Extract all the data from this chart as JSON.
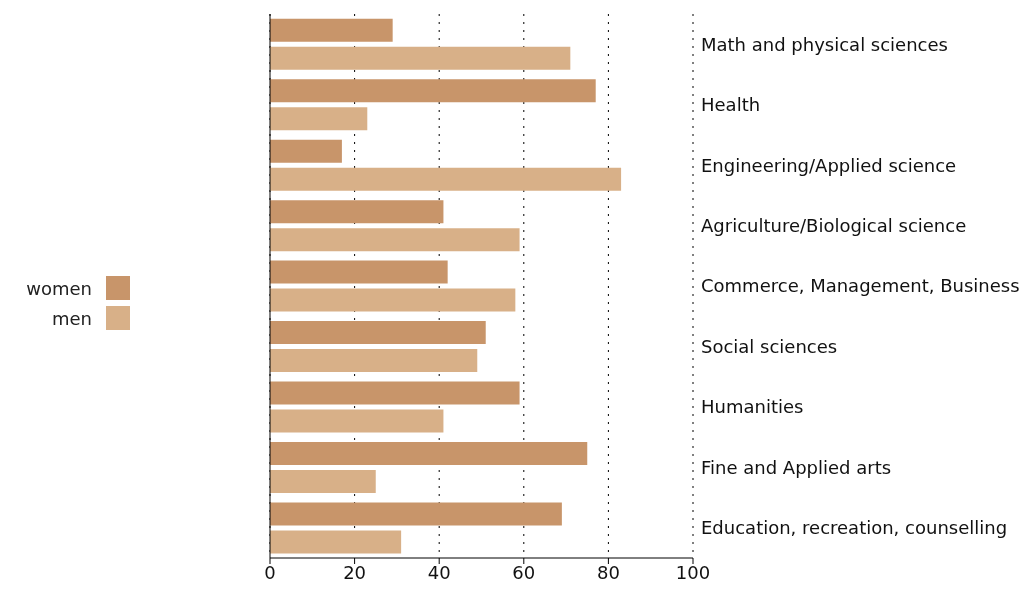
{
  "chart_data": {
    "type": "bar",
    "orientation": "horizontal",
    "categories": [
      "Math and physical sciences",
      "Health",
      "Engineering/Applied science",
      "Agriculture/Biological science",
      "Commerce, Management, Business",
      "Social sciences",
      "Humanities",
      "Fine and Applied arts",
      "Education, recreation, counselling"
    ],
    "series": [
      {
        "name": "women",
        "color": "#c8956a",
        "values": [
          29,
          77,
          17,
          41,
          42,
          51,
          59,
          75,
          69
        ]
      },
      {
        "name": "men",
        "color": "#d8b088",
        "values": [
          71,
          23,
          83,
          59,
          58,
          49,
          41,
          25,
          31
        ]
      }
    ],
    "xlim": [
      0,
      100
    ],
    "xticks": [
      0,
      20,
      40,
      60,
      80,
      100
    ],
    "grid": "x",
    "legend": "left"
  }
}
